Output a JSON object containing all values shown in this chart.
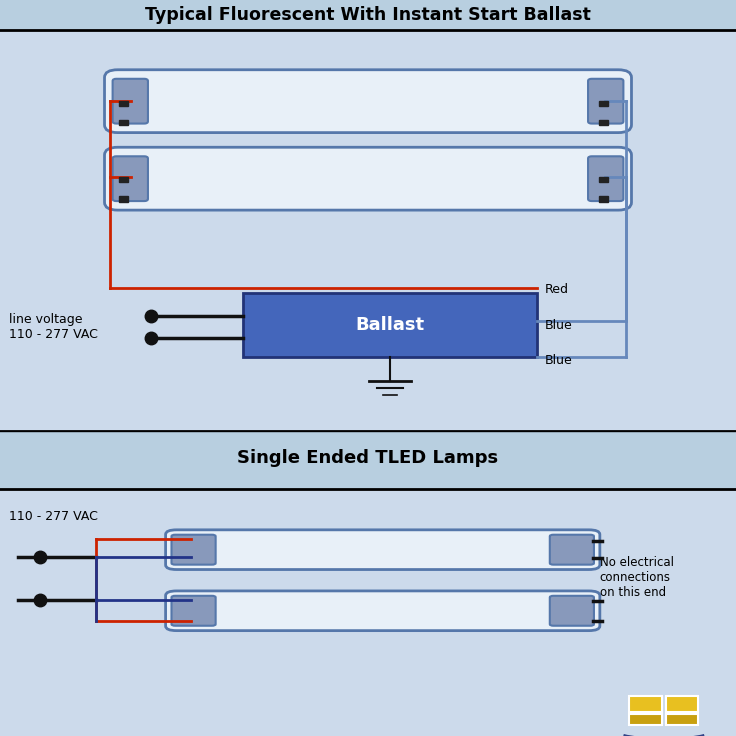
{
  "title_top": "Typical Fluorescent With Instant Start Ballast",
  "title_bottom": "Single Ended TLED Lamps",
  "bg_color_top": "#ccdaeb",
  "bg_color_bottom": "#ccdaeb",
  "bg_color_header": "#b8cfe0",
  "lamp_fill": "#e8f0f8",
  "lamp_stroke": "#5577aa",
  "lamp_cap_fill": "#8899bb",
  "ballast_fill": "#4466bb",
  "ballast_text": "Ballast",
  "ballast_text_color": "white",
  "red_wire": "#cc2200",
  "blue_wire": "#223388",
  "light_blue_wire": "#6688bb",
  "black_color": "#111111",
  "label_red": "Red",
  "label_blue1": "Blue",
  "label_blue2": "Blue",
  "label_line_voltage": "line voltage\n110 - 277 VAC",
  "label_vac_bottom": "110 - 277 VAC",
  "label_no_connection": "No electrical\nconnections\non this end",
  "logo_color1": "#e8c020",
  "logo_color2": "#c8a010",
  "logo_arc_color": "#334488"
}
